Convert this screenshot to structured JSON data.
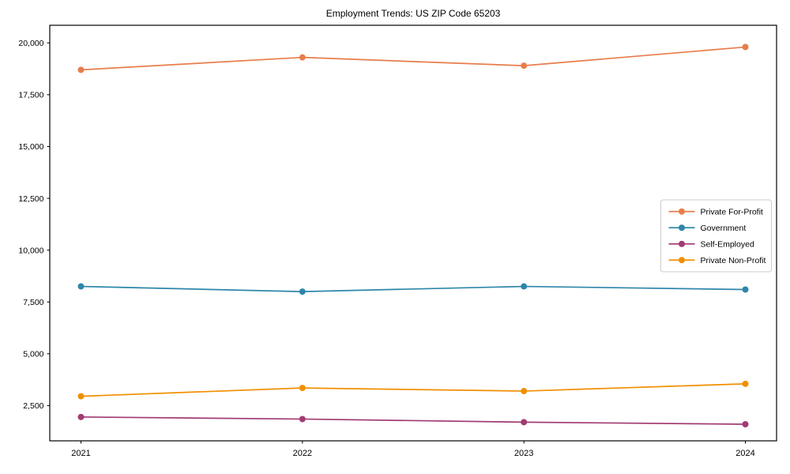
{
  "chart_data": {
    "type": "line",
    "title": "Employment Trends: US ZIP Code 65203",
    "xlabel": "",
    "ylabel": "",
    "categories": [
      "2021",
      "2022",
      "2023",
      "2024"
    ],
    "series": [
      {
        "name": "Private For-Profit",
        "color": "#E87D4B",
        "values": [
          18700,
          19300,
          18900,
          19800
        ]
      },
      {
        "name": "Government",
        "color": "#2E86AB",
        "values": [
          8250,
          8000,
          8250,
          8100
        ]
      },
      {
        "name": "Self-Employed",
        "color": "#A23B72",
        "values": [
          1950,
          1850,
          1700,
          1600
        ]
      },
      {
        "name": "Private Non-Profit",
        "color": "#F18F01",
        "values": [
          2950,
          3350,
          3200,
          3550
        ]
      }
    ],
    "y_ticks": [
      2500,
      5000,
      7500,
      10000,
      12500,
      15000,
      17500,
      20000
    ],
    "y_tick_labels": [
      "2,500",
      "5,000",
      "7,500",
      "10,000",
      "12,500",
      "15,000",
      "17,500",
      "20,000"
    ],
    "ylim": [
      800,
      20850
    ],
    "grid": false,
    "marker": "circle",
    "legend_position": "center-right",
    "axis_color": "#000000",
    "legend_border_color": "#cccccc",
    "background_color": "#ffffff"
  }
}
